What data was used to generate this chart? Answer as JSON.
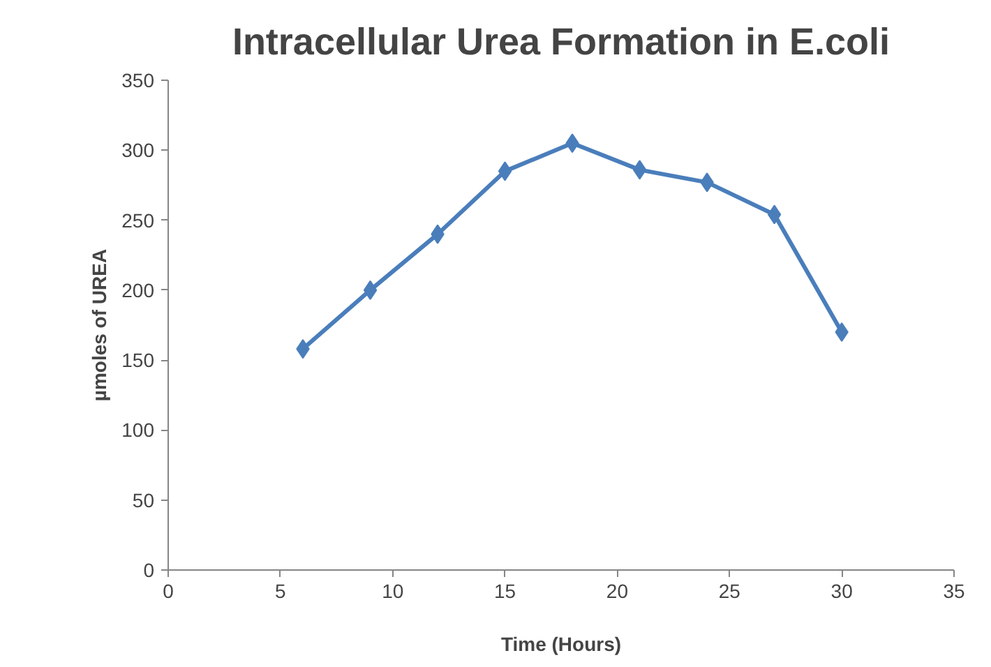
{
  "chart_data": {
    "type": "line",
    "title": "Intracellular Urea Formation in E.coli",
    "xlabel": "Time (Hours)",
    "ylabel": "µmoles of UREA",
    "x": [
      6,
      9,
      12,
      15,
      18,
      21,
      24,
      27,
      30
    ],
    "series": [
      {
        "color": "#4a7ebb",
        "values": [
          158,
          200,
          240,
          285,
          305,
          286,
          277,
          254,
          170
        ]
      }
    ],
    "xlim": [
      0,
      35
    ],
    "xticks": [
      0,
      5,
      10,
      15,
      20,
      25,
      30,
      35
    ],
    "ylim": [
      0,
      350
    ],
    "yticks": [
      0,
      50,
      100,
      150,
      200,
      250,
      300,
      350
    ],
    "grid": false,
    "marker": "diamond",
    "line_style": "solid"
  }
}
